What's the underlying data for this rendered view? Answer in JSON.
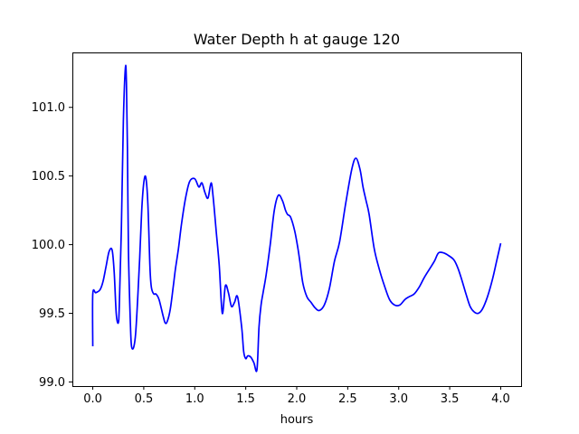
{
  "chart_data": {
    "type": "line",
    "title": "Water Depth h at gauge 120",
    "xlabel": "hours",
    "ylabel": "",
    "xlim": [
      -0.2,
      4.2
    ],
    "ylim": [
      98.97,
      101.4
    ],
    "xticks": [
      0.0,
      0.5,
      1.0,
      1.5,
      2.0,
      2.5,
      3.0,
      3.5,
      4.0
    ],
    "xtick_labels": [
      "0.0",
      "0.5",
      "1.0",
      "1.5",
      "2.0",
      "2.5",
      "3.0",
      "3.5",
      "4.0"
    ],
    "yticks": [
      99.0,
      99.5,
      100.0,
      100.5,
      101.0
    ],
    "ytick_labels": [
      "99.0",
      "99.5",
      "100.0",
      "100.5",
      "101.0"
    ],
    "grid": false,
    "series": [
      {
        "color": "#0000ff",
        "x": [
          0.0,
          0.0,
          0.03,
          0.07,
          0.1,
          0.13,
          0.16,
          0.19,
          0.21,
          0.23,
          0.25,
          0.26,
          0.28,
          0.3,
          0.32,
          0.33,
          0.34,
          0.35,
          0.37,
          0.38,
          0.4,
          0.42,
          0.44,
          0.46,
          0.48,
          0.5,
          0.52,
          0.54,
          0.56,
          0.57,
          0.58,
          0.6,
          0.62,
          0.65,
          0.69,
          0.71,
          0.73,
          0.76,
          0.79,
          0.81,
          0.84,
          0.87,
          0.91,
          0.95,
          1.0,
          1.04,
          1.07,
          1.1,
          1.13,
          1.16,
          1.18,
          1.21,
          1.24,
          1.27,
          1.3,
          1.33,
          1.36,
          1.39,
          1.42,
          1.46,
          1.48,
          1.5,
          1.52,
          1.55,
          1.58,
          1.61,
          1.63,
          1.65,
          1.67,
          1.7,
          1.74,
          1.78,
          1.82,
          1.86,
          1.89,
          1.91,
          1.94,
          1.98,
          2.01,
          2.03,
          2.06,
          2.1,
          2.14,
          2.18,
          2.22,
          2.27,
          2.32,
          2.37,
          2.42,
          2.48,
          2.54,
          2.58,
          2.62,
          2.65,
          2.68,
          2.71,
          2.76,
          2.81,
          2.86,
          2.91,
          2.96,
          3.01,
          3.06,
          3.1,
          3.15,
          3.2,
          3.25,
          3.3,
          3.35,
          3.39,
          3.44,
          3.49,
          3.54,
          3.58,
          3.62,
          3.66,
          3.7,
          3.74,
          3.78,
          3.82,
          3.87,
          3.92,
          3.96,
          4.0
        ],
        "y": [
          99.26,
          99.64,
          99.65,
          99.67,
          99.73,
          99.84,
          99.95,
          99.96,
          99.8,
          99.5,
          99.43,
          99.55,
          100.1,
          100.9,
          101.29,
          101.18,
          100.7,
          99.95,
          99.4,
          99.26,
          99.25,
          99.35,
          99.6,
          99.9,
          100.25,
          100.45,
          100.49,
          100.3,
          99.85,
          99.72,
          99.67,
          99.64,
          99.64,
          99.6,
          99.48,
          99.43,
          99.44,
          99.53,
          99.7,
          99.82,
          99.97,
          100.15,
          100.34,
          100.46,
          100.48,
          100.42,
          100.45,
          100.38,
          100.34,
          100.45,
          100.35,
          100.1,
          99.85,
          99.5,
          99.7,
          99.65,
          99.55,
          99.58,
          99.62,
          99.4,
          99.22,
          99.17,
          99.19,
          99.18,
          99.14,
          99.09,
          99.4,
          99.56,
          99.65,
          99.78,
          100.0,
          100.25,
          100.36,
          100.32,
          100.25,
          100.22,
          100.2,
          100.1,
          99.98,
          99.88,
          99.72,
          99.62,
          99.58,
          99.54,
          99.52,
          99.56,
          99.68,
          99.88,
          100.02,
          100.3,
          100.55,
          100.63,
          100.55,
          100.42,
          100.32,
          100.22,
          99.97,
          99.82,
          99.7,
          99.6,
          99.56,
          99.56,
          99.6,
          99.62,
          99.64,
          99.69,
          99.76,
          99.82,
          99.88,
          99.94,
          99.94,
          99.92,
          99.89,
          99.83,
          99.74,
          99.64,
          99.55,
          99.51,
          99.5,
          99.53,
          99.62,
          99.75,
          99.88,
          100.01
        ]
      }
    ]
  }
}
